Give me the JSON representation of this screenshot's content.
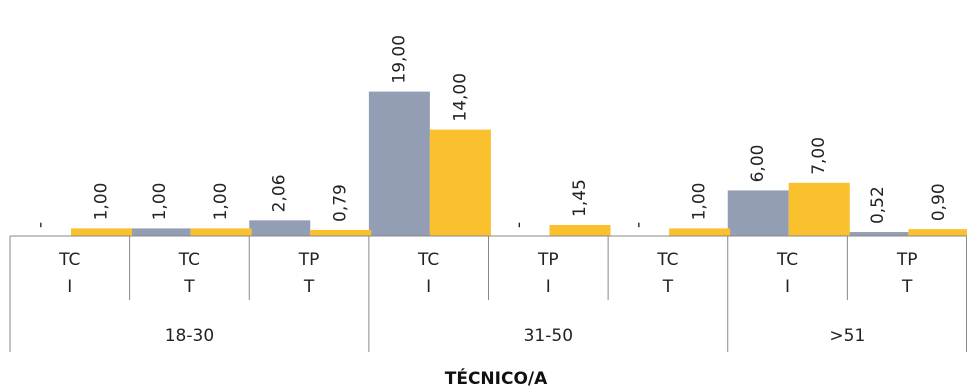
{
  "chart_data": {
    "type": "bar",
    "xlabel": "TÉCNICO/A",
    "ylabel": "",
    "ylim": [
      0,
      20
    ],
    "grid": false,
    "legend": "none",
    "groups": [
      {
        "label": "18-30",
        "span": 3
      },
      {
        "label": "31-50",
        "span": 3
      },
      {
        "label": ">51",
        "span": 2
      }
    ],
    "categories": [
      [
        "TC",
        "I"
      ],
      [
        "TC",
        "T"
      ],
      [
        "TP",
        "T"
      ],
      [
        "TC",
        "I"
      ],
      [
        "TP",
        "I"
      ],
      [
        "TC",
        "T"
      ],
      [
        "TC",
        "I"
      ],
      [
        "TP",
        "T"
      ]
    ],
    "series": [
      {
        "color": "#939db3",
        "values": [
          0,
          1.0,
          2.06,
          19.0,
          0,
          0,
          6.0,
          0.52
        ],
        "labels": [
          "-",
          "1,00",
          "2,06",
          "19,00",
          "-",
          "-",
          "6,00",
          "0,52"
        ]
      },
      {
        "color": "#fbc02d",
        "values": [
          1.0,
          1.0,
          0.79,
          14.0,
          1.45,
          1.0,
          7.0,
          0.9
        ],
        "labels": [
          "1,00",
          "1,00",
          "0,79",
          "14,00",
          "1,45",
          "1,00",
          "7,00",
          "0,90"
        ]
      }
    ]
  }
}
